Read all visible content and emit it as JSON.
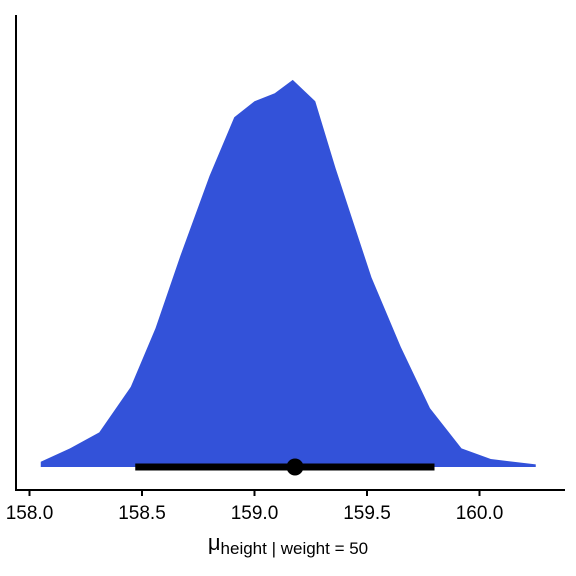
{
  "chart_data": {
    "type": "density",
    "x_label": {
      "symbol": "μ",
      "subscript": "height | weight = 50"
    },
    "x": [
      158.05,
      158.18,
      158.31,
      158.45,
      158.56,
      158.67,
      158.8,
      158.91,
      159.0,
      159.09,
      159.17,
      159.27,
      159.36,
      159.43,
      159.52,
      159.65,
      159.78,
      159.92,
      160.05,
      160.25
    ],
    "values": [
      0.02,
      0.07,
      0.13,
      0.3,
      0.52,
      0.79,
      1.09,
      1.31,
      1.37,
      1.4,
      1.45,
      1.37,
      1.12,
      0.94,
      0.71,
      0.45,
      0.22,
      0.07,
      0.03,
      0.01
    ],
    "color": "#3352d9",
    "interval": {
      "point": 159.18,
      "low": 158.47,
      "high": 159.8,
      "color": "#000000"
    },
    "xlim": [
      157.94,
      160.38
    ],
    "xticks": [
      {
        "value": 158,
        "label": "158.0"
      },
      {
        "value": 158.5,
        "label": "158.5"
      },
      {
        "value": 159,
        "label": "159.0"
      },
      {
        "value": 159.5,
        "label": "159.5"
      },
      {
        "value": 160,
        "label": "160.0"
      }
    ],
    "ylim": [
      -0.086,
      1.693
    ]
  }
}
